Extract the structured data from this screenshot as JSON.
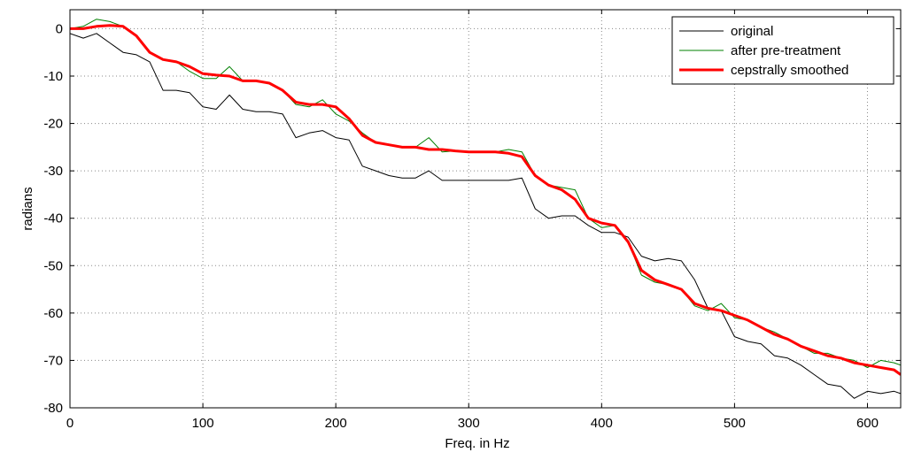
{
  "chart_data": {
    "type": "line",
    "xlabel": "Freq. in Hz",
    "ylabel": "radians",
    "x": [
      0,
      10,
      20,
      30,
      40,
      50,
      60,
      70,
      80,
      90,
      100,
      110,
      120,
      130,
      140,
      150,
      160,
      170,
      180,
      190,
      200,
      210,
      220,
      230,
      240,
      250,
      260,
      270,
      280,
      290,
      300,
      310,
      320,
      330,
      340,
      350,
      360,
      370,
      380,
      390,
      400,
      410,
      420,
      430,
      440,
      450,
      460,
      470,
      480,
      490,
      500,
      510,
      520,
      530,
      540,
      550,
      560,
      570,
      580,
      590,
      600,
      610,
      620,
      625
    ],
    "series": [
      {
        "name": "original",
        "color": "#000000",
        "width": 1,
        "values": [
          -1,
          -2,
          -1,
          -3,
          -5,
          -5.5,
          -7,
          -13,
          -13,
          -13.5,
          -16.5,
          -17,
          -14,
          -17,
          -17.5,
          -17.5,
          -18,
          -23,
          -22,
          -21.5,
          -23,
          -23.5,
          -29,
          -30,
          -31,
          -31.5,
          -31.5,
          -30,
          -32,
          -32,
          -32,
          -32,
          -32,
          -32,
          -31.5,
          -38,
          -40,
          -39.5,
          -39.5,
          -41.5,
          -43,
          -43,
          -44,
          -48,
          -49,
          -48.5,
          -49,
          -53,
          -59,
          -59.5,
          -65,
          -66,
          -66.5,
          -69,
          -69.5,
          -71,
          -73,
          -75,
          -75.5,
          -78,
          -76.5,
          -77,
          -76.5,
          -77
        ]
      },
      {
        "name": "after pre-treatment",
        "color": "#008000",
        "width": 1,
        "values": [
          0,
          0.5,
          2,
          1.5,
          0.5,
          -1.5,
          -5,
          -6.5,
          -7,
          -9,
          -10.5,
          -10.5,
          -8,
          -11,
          -11,
          -11.5,
          -13,
          -16,
          -16.5,
          -15,
          -18,
          -19.5,
          -22,
          -24,
          -24.5,
          -25,
          -25,
          -23,
          -26,
          -25.8,
          -26,
          -26,
          -26,
          -25.5,
          -26,
          -31,
          -33,
          -33.5,
          -34,
          -40,
          -42,
          -41.5,
          -45,
          -52,
          -53.5,
          -54,
          -55,
          -58.5,
          -59.5,
          -58,
          -61,
          -61.5,
          -63,
          -64,
          -65.5,
          -67,
          -68.5,
          -68.5,
          -69.5,
          -70,
          -71.5,
          -70,
          -70.5,
          -71
        ]
      },
      {
        "name": "cepstrally smoothed",
        "color": "#ff0000",
        "width": 3,
        "values": [
          0,
          0,
          0.5,
          0.7,
          0.5,
          -1.5,
          -5,
          -6.5,
          -7,
          -8,
          -9.5,
          -9.8,
          -10,
          -11,
          -11,
          -11.5,
          -13,
          -15.5,
          -16,
          -16,
          -16.5,
          -19,
          -22.5,
          -24,
          -24.5,
          -25,
          -25,
          -25.5,
          -25.5,
          -25.8,
          -26,
          -26,
          -26,
          -26.3,
          -27,
          -31,
          -33,
          -34,
          -36,
          -40,
          -41,
          -41.5,
          -45,
          -51,
          -53,
          -54,
          -55,
          -58,
          -59,
          -59.5,
          -60.5,
          -61.5,
          -63,
          -64.5,
          -65.5,
          -67,
          -68,
          -69,
          -69.5,
          -70.5,
          -71,
          -71.5,
          -72,
          -73
        ]
      }
    ],
    "xlim": [
      0,
      625
    ],
    "xticks": [
      0,
      100,
      200,
      300,
      400,
      500,
      600
    ],
    "ylim": [
      -80,
      4
    ],
    "yticks": [
      -80,
      -70,
      -60,
      -50,
      -40,
      -30,
      -20,
      -10,
      0
    ],
    "grid": true,
    "legend": "upper right"
  }
}
